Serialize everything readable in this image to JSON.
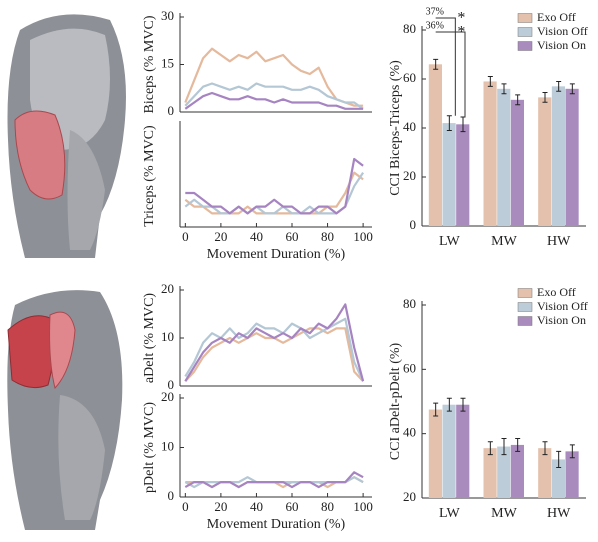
{
  "chart_data": [
    {
      "type": "line",
      "ylabel": "Biceps (% MVC)",
      "xlim": [
        -3,
        105
      ],
      "ylim": [
        0,
        30
      ],
      "yticks": [
        0,
        15,
        30
      ],
      "x": [
        0,
        5,
        10,
        15,
        20,
        25,
        30,
        35,
        40,
        45,
        50,
        55,
        60,
        65,
        70,
        75,
        80,
        85,
        90,
        95,
        100
      ],
      "series": [
        {
          "color": "#e5b99c",
          "values": [
            3,
            10,
            17,
            20,
            18,
            16,
            18,
            17,
            19,
            16,
            17,
            18,
            15,
            13,
            12,
            14,
            8,
            4,
            3,
            2,
            2
          ]
        },
        {
          "color": "#b4c7d5",
          "values": [
            2,
            5,
            8,
            9,
            8,
            7,
            8,
            7,
            9,
            8,
            8,
            8,
            7,
            7,
            8,
            7,
            5,
            4,
            3,
            3,
            1
          ]
        },
        {
          "color": "#a684c1",
          "values": [
            1,
            3,
            5,
            6,
            5,
            4,
            4,
            5,
            4,
            4,
            3,
            4,
            3,
            3,
            3,
            3,
            2,
            2,
            1,
            1,
            1
          ]
        }
      ]
    },
    {
      "type": "line",
      "ylabel": "Triceps (% MVC)",
      "xlabel": "Movement Duration (%)",
      "xlim": [
        -3,
        105
      ],
      "ylim": [
        0,
        15
      ],
      "xticks": [
        0,
        20,
        40,
        60,
        80,
        100
      ],
      "x": [
        0,
        5,
        10,
        15,
        20,
        25,
        30,
        35,
        40,
        45,
        50,
        55,
        60,
        65,
        70,
        75,
        80,
        85,
        90,
        95,
        100
      ],
      "series": [
        {
          "color": "#e5b99c",
          "values": [
            4,
            3,
            3,
            2,
            2,
            2,
            2,
            3,
            2,
            2,
            2,
            2,
            2,
            2,
            2,
            2,
            3,
            3,
            5,
            8,
            7
          ]
        },
        {
          "color": "#b4c7d5",
          "values": [
            3,
            4,
            3,
            3,
            2,
            2,
            3,
            2,
            3,
            2,
            2,
            3,
            2,
            2,
            3,
            2,
            2,
            2,
            3,
            6,
            8
          ]
        },
        {
          "color": "#a684c1",
          "values": [
            5,
            5,
            4,
            3,
            3,
            2,
            3,
            2,
            3,
            3,
            4,
            3,
            3,
            2,
            2,
            3,
            3,
            2,
            3,
            10,
            9
          ]
        }
      ]
    },
    {
      "type": "line",
      "ylabel": "aDelt (% MVC)",
      "xlim": [
        -3,
        105
      ],
      "ylim": [
        0,
        20
      ],
      "yticks": [
        0,
        10,
        20
      ],
      "x": [
        0,
        5,
        10,
        15,
        20,
        25,
        30,
        35,
        40,
        45,
        50,
        55,
        60,
        65,
        70,
        75,
        80,
        85,
        90,
        95,
        100
      ],
      "series": [
        {
          "color": "#e5b99c",
          "values": [
            1,
            3,
            6,
            8,
            9,
            10,
            9,
            10,
            11,
            10,
            10,
            9,
            10,
            11,
            12,
            12,
            11,
            12,
            12,
            3,
            1
          ]
        },
        {
          "color": "#b4c7d5",
          "values": [
            2,
            5,
            9,
            11,
            10,
            12,
            10,
            11,
            13,
            12,
            12,
            11,
            13,
            12,
            10,
            11,
            12,
            13,
            14,
            5,
            1
          ]
        },
        {
          "color": "#a684c1",
          "values": [
            1,
            4,
            7,
            9,
            10,
            9,
            11,
            10,
            12,
            11,
            10,
            11,
            10,
            12,
            11,
            13,
            12,
            14,
            17,
            8,
            1
          ]
        }
      ]
    },
    {
      "type": "line",
      "ylabel": "pDelt (% MVC)",
      "xlabel": "Movement Duration (%)",
      "xlim": [
        -3,
        105
      ],
      "ylim": [
        0,
        20
      ],
      "yticks": [
        0,
        10,
        20
      ],
      "xticks": [
        0,
        20,
        40,
        60,
        80,
        100
      ],
      "x": [
        0,
        5,
        10,
        15,
        20,
        25,
        30,
        35,
        40,
        45,
        50,
        55,
        60,
        65,
        70,
        75,
        80,
        85,
        90,
        95,
        100
      ],
      "series": [
        {
          "color": "#e5b99c",
          "values": [
            3,
            3,
            3,
            2,
            3,
            3,
            2,
            3,
            3,
            3,
            3,
            2,
            3,
            3,
            3,
            3,
            2,
            3,
            3,
            4,
            3
          ]
        },
        {
          "color": "#b4c7d5",
          "values": [
            3,
            2,
            3,
            3,
            3,
            3,
            3,
            4,
            3,
            3,
            3,
            3,
            3,
            3,
            3,
            3,
            3,
            3,
            3,
            4,
            3
          ]
        },
        {
          "color": "#a684c1",
          "values": [
            2,
            3,
            3,
            2,
            3,
            3,
            2,
            3,
            3,
            3,
            3,
            3,
            2,
            3,
            3,
            2,
            3,
            3,
            3,
            5,
            4
          ]
        }
      ]
    },
    {
      "type": "bar",
      "ylabel": "CCI Biceps-Triceps (%)",
      "ylim": [
        0,
        80
      ],
      "yticks": [
        0,
        20,
        40,
        60,
        80
      ],
      "categories": [
        "LW",
        "MW",
        "HW"
      ],
      "series": [
        {
          "name": "Exo Off",
          "color": "#e3c1ac",
          "values": [
            66,
            59,
            52.5
          ],
          "errors": [
            2,
            2,
            2
          ]
        },
        {
          "name": "Vision Off",
          "color": "#bccdd9",
          "values": [
            42,
            56,
            57
          ],
          "errors": [
            3,
            2,
            2
          ]
        },
        {
          "name": "Vision On",
          "color": "#a98bbe",
          "values": [
            41.5,
            51.5,
            56
          ],
          "errors": [
            3,
            2,
            2
          ]
        }
      ],
      "annotations": [
        "37%",
        "36%",
        "*",
        "*"
      ]
    },
    {
      "type": "bar",
      "ylabel": "CCI aDelt-pDelt (%)",
      "ylim": [
        20,
        80
      ],
      "yticks": [
        20,
        40,
        60,
        80
      ],
      "categories": [
        "LW",
        "MW",
        "HW"
      ],
      "series": [
        {
          "name": "Exo Off",
          "color": "#e3c1ac",
          "values": [
            47.5,
            35.5,
            35.5
          ],
          "errors": [
            2,
            2,
            2
          ]
        },
        {
          "name": "Vision Off",
          "color": "#bccdd9",
          "values": [
            49,
            36,
            32
          ],
          "errors": [
            2,
            2.5,
            2.5
          ]
        },
        {
          "name": "Vision On",
          "color": "#a98bbe",
          "values": [
            49,
            36.5,
            34.5
          ],
          "errors": [
            2,
            2,
            2
          ]
        }
      ]
    }
  ]
}
